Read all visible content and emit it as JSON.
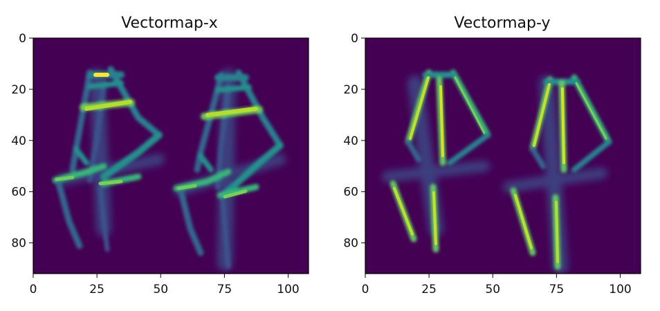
{
  "chart_data": [
    {
      "type": "heatmap",
      "title": "Vectormap-x",
      "colormap": "viridis",
      "xlim": [
        0,
        108
      ],
      "ylim": [
        92,
        0
      ],
      "xticks": [
        "0",
        "25",
        "50",
        "75",
        "100"
      ],
      "yticks": [
        "0",
        "20",
        "40",
        "60",
        "80"
      ],
      "xlabel": "",
      "ylabel": ""
    },
    {
      "type": "heatmap",
      "title": "Vectormap-y",
      "colormap": "viridis",
      "xlim": [
        0,
        108
      ],
      "ylim": [
        92,
        0
      ],
      "xticks": [
        "0",
        "25",
        "50",
        "75",
        "100"
      ],
      "yticks": [
        "0",
        "20",
        "40",
        "60",
        "80"
      ],
      "xlabel": "",
      "ylabel": ""
    }
  ]
}
